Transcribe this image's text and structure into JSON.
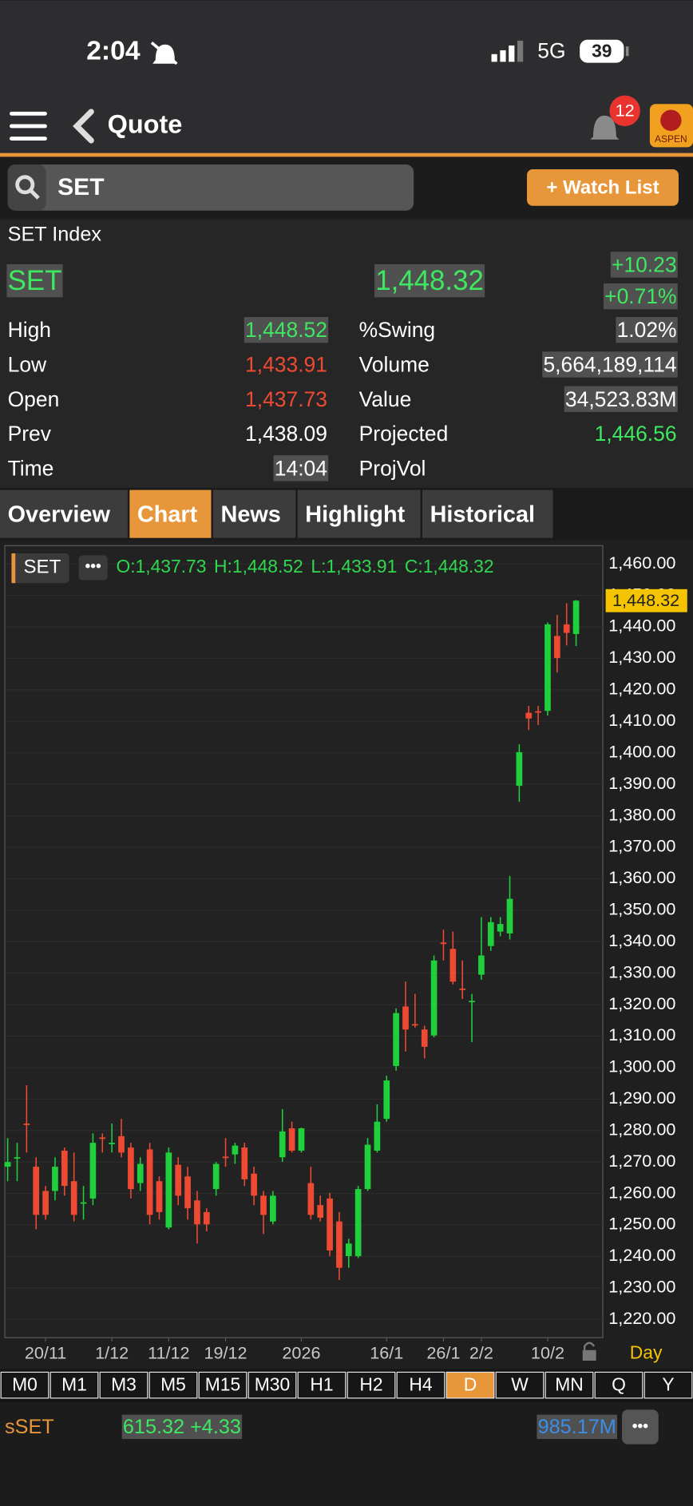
{
  "status_bar": {
    "time": "2:04",
    "network": "5G",
    "battery": "39"
  },
  "header": {
    "title": "Quote",
    "badge": "12",
    "logo": "ASPEN"
  },
  "search": {
    "query": "SET",
    "button": "+ Watch List"
  },
  "quote": {
    "name": "SET Index",
    "symbol": "SET",
    "last": "1,448.32",
    "change": "+10.23",
    "change_pct": "+0.71%",
    "stats_left": [
      {
        "label": "High",
        "value": "1,448.52"
      },
      {
        "label": "Low",
        "value": "1,433.91"
      },
      {
        "label": "Open",
        "value": "1,437.73"
      },
      {
        "label": "Prev",
        "value": "1,438.09"
      },
      {
        "label": "Time",
        "value": "14:04"
      }
    ],
    "stats_right": [
      {
        "label": "%Swing",
        "value": "1.02%"
      },
      {
        "label": "Volume",
        "value": "5,664,189,114"
      },
      {
        "label": "Value",
        "value": "34,523.83M"
      },
      {
        "label": "Projected",
        "value": "1,446.56"
      },
      {
        "label": "ProjVol"
      }
    ]
  },
  "tabs": {
    "items": [
      "Overview",
      "Chart",
      "News",
      "Highlight",
      "Historical"
    ],
    "active_index": 1
  },
  "chart_data": {
    "type": "candlestick",
    "symbol": "SET",
    "period": "Day",
    "last_label": "1,448.32",
    "legend": {
      "open": "O:1,437.73",
      "high": "H:1,448.52",
      "low": "L:1,433.91",
      "close": "C:1,448.32"
    },
    "up_color": "#1fcf3c",
    "down_color": "#ee4a33",
    "ylim": [
      1214.2,
      1465.8
    ],
    "yticks": [
      {
        "value": 1460,
        "label": "1,460.00"
      },
      {
        "value": 1450,
        "label": "1,450.00"
      },
      {
        "value": 1440,
        "label": "1,440.00"
      },
      {
        "value": 1430,
        "label": "1,430.00"
      },
      {
        "value": 1420,
        "label": "1,420.00"
      },
      {
        "value": 1410,
        "label": "1,410.00"
      },
      {
        "value": 1400,
        "label": "1,400.00"
      },
      {
        "value": 1390,
        "label": "1,390.00"
      },
      {
        "value": 1380,
        "label": "1,380.00"
      },
      {
        "value": 1370,
        "label": "1,370.00"
      },
      {
        "value": 1360,
        "label": "1,360.00"
      },
      {
        "value": 1350,
        "label": "1,350.00"
      },
      {
        "value": 1340,
        "label": "1,340.00"
      },
      {
        "value": 1330,
        "label": "1,330.00"
      },
      {
        "value": 1320,
        "label": "1,320.00"
      },
      {
        "value": 1310,
        "label": "1,310.00"
      },
      {
        "value": 1300,
        "label": "1,300.00"
      },
      {
        "value": 1290,
        "label": "1,290.00"
      },
      {
        "value": 1280,
        "label": "1,280.00"
      },
      {
        "value": 1270,
        "label": "1,270.00"
      },
      {
        "value": 1260,
        "label": "1,260.00"
      },
      {
        "value": 1250,
        "label": "1,250.00"
      },
      {
        "value": 1240,
        "label": "1,240.00"
      },
      {
        "value": 1230,
        "label": "1,230.00"
      },
      {
        "value": 1220,
        "label": "1,220.00"
      }
    ],
    "xticks": [
      {
        "value": 4,
        "label": "20/11"
      },
      {
        "value": 11,
        "label": "1/12"
      },
      {
        "value": 17,
        "label": "11/12"
      },
      {
        "value": 23,
        "label": "19/12"
      },
      {
        "value": 31,
        "label": "2026"
      },
      {
        "value": 40,
        "label": "16/1"
      },
      {
        "value": 46,
        "label": "26/1"
      },
      {
        "value": 50,
        "label": "2/2"
      },
      {
        "value": 57,
        "label": "10/2"
      }
    ],
    "open": [
      1268.5,
      1271.3,
      1282.2,
      1268.5,
      1260.8,
      1260.8,
      1273.6,
      1263.9,
      1257,
      1258.4,
      1277.8,
      1276,
      1278.2,
      1274.6,
      1263.3,
      1274,
      1263.9,
      1249.2,
      1269.1,
      1265.4,
      1257.8,
      1254.1,
      1261.4,
      1271.7,
      1272.4,
      1274.6,
      1266.3,
      1259.3,
      1251.1,
      1271.5,
      1280.7,
      1273.6,
      1263.3,
      1256.3,
      1258.4,
      1251.1,
      1240.1,
      1240.1,
      1261.4,
      1273.6,
      1283.7,
      1300.5,
      1319.4,
      1313.8,
      1312.1,
      1310.2,
      1339.7,
      1337.7,
      1325.1,
      1321,
      1329.5,
      1338.6,
      1343.2,
      1342.6,
      1389.5,
      1412.7,
      1413.2,
      1413.3,
      1437.1,
      1440.8,
      1437.73
    ],
    "high": [
      1277.6,
      1276.1,
      1294.4,
      1271.5,
      1262.4,
      1271.5,
      1274.6,
      1273,
      1262.4,
      1279.1,
      1279.1,
      1282.2,
      1283.7,
      1276.1,
      1271.5,
      1276.1,
      1265.4,
      1274.6,
      1271.5,
      1268.5,
      1260.8,
      1255.3,
      1270,
      1277.6,
      1276.1,
      1276.1,
      1268.5,
      1260.8,
      1260.8,
      1286.8,
      1282.8,
      1280.9,
      1268.5,
      1259.3,
      1260.2,
      1254.1,
      1245.6,
      1262.4,
      1277.6,
      1288.3,
      1297.4,
      1318.8,
      1327.3,
      1323.4,
      1313.3,
      1335.6,
      1343.8,
      1343.2,
      1334,
      1323.4,
      1347.8,
      1347.8,
      1347.8,
      1360.9,
      1402.7,
      1414.9,
      1414.9,
      1441.4,
      1443.8,
      1447.5,
      1448.52
    ],
    "low": [
      1263.9,
      1263.9,
      1273,
      1248.6,
      1251.7,
      1257.8,
      1259.3,
      1251.1,
      1251.7,
      1256.3,
      1273,
      1273,
      1271.5,
      1258.4,
      1260.8,
      1250.2,
      1251.7,
      1248.6,
      1256.3,
      1251.7,
      1244.1,
      1248,
      1259.3,
      1268.5,
      1269.4,
      1262.4,
      1256.3,
      1247.1,
      1250.2,
      1270,
      1273,
      1273,
      1251.7,
      1251.1,
      1240.1,
      1232.5,
      1236.4,
      1239.5,
      1260.8,
      1273,
      1282.8,
      1299,
      1305.1,
      1312.7,
      1302.9,
      1309.6,
      1334,
      1326.4,
      1321.8,
      1308.1,
      1327.9,
      1337.1,
      1341.7,
      1340.7,
      1384.4,
      1407.2,
      1408.8,
      1411.8,
      1425.5,
      1434.1,
      1433.91
    ],
    "close": [
      1270,
      1271.5,
      1282,
      1253.2,
      1253.2,
      1268.5,
      1262.4,
      1253.2,
      1257.2,
      1276.1,
      1277.6,
      1276.1,
      1273,
      1261.4,
      1269.4,
      1253.2,
      1254.1,
      1273,
      1259.3,
      1255.3,
      1250.2,
      1250.2,
      1269.4,
      1271.5,
      1275.2,
      1264.5,
      1259.3,
      1253.2,
      1259.3,
      1279.7,
      1273.6,
      1280.7,
      1253.2,
      1252.3,
      1241.9,
      1236.4,
      1244.1,
      1261.4,
      1275.5,
      1282.8,
      1295.9,
      1317.3,
      1312.1,
      1313.6,
      1306.6,
      1334,
      1339.5,
      1327.3,
      1324.9,
      1321.2,
      1335.6,
      1346.2,
      1345.6,
      1353.6,
      1400.2,
      1410.9,
      1413,
      1440.8,
      1430.1,
      1438.09,
      1448.32
    ]
  },
  "timeframes": {
    "items": [
      "M0",
      "M1",
      "M3",
      "M5",
      "M15",
      "M30",
      "H1",
      "H2",
      "H4",
      "D",
      "W",
      "MN",
      "Q",
      "Y"
    ],
    "active_index": 9
  },
  "footer": {
    "symbol": "sSET",
    "price_change": "615.32 +4.33",
    "volume": "985.17M"
  }
}
